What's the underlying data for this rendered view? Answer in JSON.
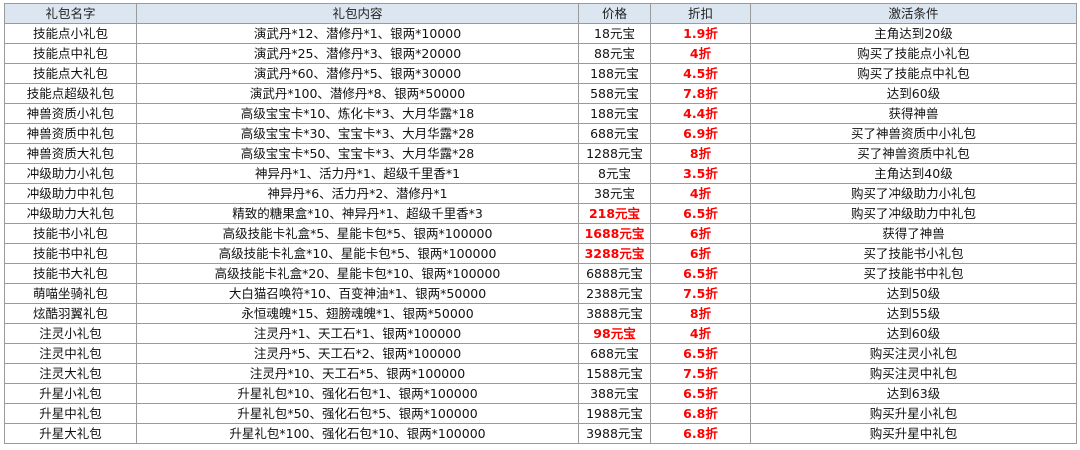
{
  "headers": [
    "礼包名字",
    "礼包内容",
    "价格",
    "折扣",
    "激活条件"
  ],
  "rows": [
    {
      "name": "技能点小礼包",
      "content": "演武丹*12、潜修丹*1、银两*10000",
      "price": "18元宝",
      "price_red": false,
      "discount": "1.9折",
      "condition": "主角达到20级"
    },
    {
      "name": "技能点中礼包",
      "content": "演武丹*25、潜修丹*3、银两*20000",
      "price": "88元宝",
      "price_red": false,
      "discount": "4折",
      "condition": "购买了技能点小礼包"
    },
    {
      "name": "技能点大礼包",
      "content": "演武丹*60、潜修丹*5、银两*30000",
      "price": "188元宝",
      "price_red": false,
      "discount": "4.5折",
      "condition": "购买了技能点中礼包"
    },
    {
      "name": "技能点超级礼包",
      "content": "演武丹*100、潜修丹*8、银两*50000",
      "price": "588元宝",
      "price_red": false,
      "discount": "7.8折",
      "condition": "达到60级"
    },
    {
      "name": "神兽资质小礼包",
      "content": "高级宝宝卡*10、炼化卡*3、大月华露*18",
      "price": "188元宝",
      "price_red": false,
      "discount": "4.4折",
      "condition": "获得神兽"
    },
    {
      "name": "神兽资质中礼包",
      "content": "高级宝宝卡*30、宝宝卡*3、大月华露*28",
      "price": "688元宝",
      "price_red": false,
      "discount": "6.9折",
      "condition": "买了神兽资质中小礼包"
    },
    {
      "name": "神兽资质大礼包",
      "content": "高级宝宝卡*50、宝宝卡*3、大月华露*28",
      "price": "1288元宝",
      "price_red": false,
      "discount": "8折",
      "condition": "买了神兽资质中礼包"
    },
    {
      "name": "冲级助力小礼包",
      "content": "神异丹*1、活力丹*1、超级千里香*1",
      "price": "8元宝",
      "price_red": false,
      "discount": "3.5折",
      "condition": "主角达到40级"
    },
    {
      "name": "冲级助力中礼包",
      "content": "神异丹*6、活力丹*2、潜修丹*1",
      "price": "38元宝",
      "price_red": false,
      "discount": "4折",
      "condition": "购买了冲级助力小礼包"
    },
    {
      "name": "冲级助力大礼包",
      "content": "精致的糖果盒*10、神异丹*1、超级千里香*3",
      "price": "218元宝",
      "price_red": true,
      "discount": "6.5折",
      "condition": "购买了冲级助力中礼包"
    },
    {
      "name": "技能书小礼包",
      "content": "高级技能卡礼盒*5、星能卡包*5、银两*100000",
      "price": "1688元宝",
      "price_red": true,
      "discount": "6折",
      "condition": "获得了神兽"
    },
    {
      "name": "技能书中礼包",
      "content": "高级技能卡礼盒*10、星能卡包*5、银两*100000",
      "price": "3288元宝",
      "price_red": true,
      "discount": "6折",
      "condition": "买了技能书小礼包"
    },
    {
      "name": "技能书大礼包",
      "content": "高级技能卡礼盒*20、星能卡包*10、银两*100000",
      "price": "6888元宝",
      "price_red": false,
      "discount": "6.5折",
      "condition": "买了技能书中礼包"
    },
    {
      "name": "萌喵坐骑礼包",
      "content": "大白猫召唤符*10、百变神油*1、银两*50000",
      "price": "2388元宝",
      "price_red": false,
      "discount": "7.5折",
      "condition": "达到50级"
    },
    {
      "name": "炫酷羽翼礼包",
      "content": "永恒魂魄*15、翅膀魂魄*1、银两*50000",
      "price": "3888元宝",
      "price_red": false,
      "discount": "8折",
      "condition": "达到55级"
    },
    {
      "name": "注灵小礼包",
      "content": "注灵丹*1、天工石*1、银两*100000",
      "price": "98元宝",
      "price_red": true,
      "discount": "4折",
      "condition": "达到60级"
    },
    {
      "name": "注灵中礼包",
      "content": "注灵丹*5、天工石*2、银两*100000",
      "price": "688元宝",
      "price_red": false,
      "discount": "6.5折",
      "condition": "购买注灵小礼包"
    },
    {
      "name": "注灵大礼包",
      "content": "注灵丹*10、天工石*5、银两*100000",
      "price": "1588元宝",
      "price_red": false,
      "discount": "7.5折",
      "condition": "购买注灵中礼包"
    },
    {
      "name": "升星小礼包",
      "content": "升星礼包*10、强化石包*1、银两*100000",
      "price": "388元宝",
      "price_red": false,
      "discount": "6.5折",
      "condition": "达到63级"
    },
    {
      "name": "升星中礼包",
      "content": "升星礼包*50、强化石包*5、银两*100000",
      "price": "1988元宝",
      "price_red": false,
      "discount": "6.8折",
      "condition": "购买升星小礼包"
    },
    {
      "name": "升星大礼包",
      "content": "升星礼包*100、强化石包*10、银两*100000",
      "price": "3988元宝",
      "price_red": false,
      "discount": "6.8折",
      "condition": "购买升星中礼包"
    }
  ],
  "colors": {
    "header_bg": "#dce6f1",
    "highlight": "#ff0000",
    "grid": "#9a9a9a"
  }
}
